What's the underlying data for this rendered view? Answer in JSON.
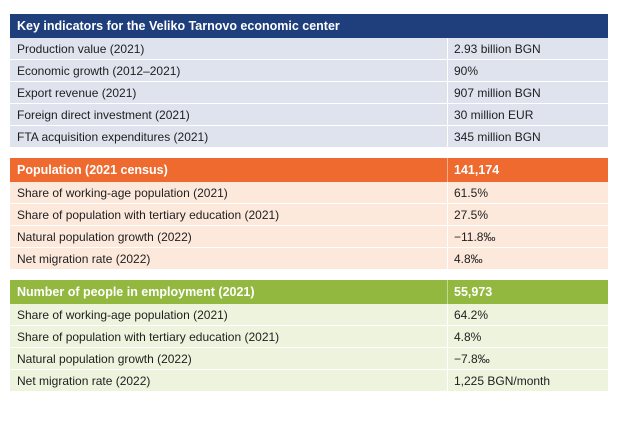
{
  "section1": {
    "title": "Key indicators for the Veliko Tarnovo economic center",
    "header_color": "#1f3e7c",
    "rows": [
      {
        "label": "Production value (2021)",
        "value": "2.93 billion BGN"
      },
      {
        "label": "Economic growth (2012–2021)",
        "value": "90%"
      },
      {
        "label": "Export revenue (2021)",
        "value": "907 million BGN"
      },
      {
        "label": "Foreign direct investment (2021)",
        "value": "30 million EUR"
      },
      {
        "label": "FTA acquisition expenditures (2021)",
        "value": "345 million BGN"
      }
    ]
  },
  "section2": {
    "title": "Population (2021 census)",
    "title_value": "141,174",
    "header_color": "#ee6a2f",
    "rows": [
      {
        "label": "Share of working-age population (2021)",
        "value": "61.5%"
      },
      {
        "label": "Share of population with tertiary education (2021)",
        "value": "27.5%"
      },
      {
        "label": "Natural population growth (2022)",
        "value": "−11.8‰"
      },
      {
        "label": "Net migration rate (2022)",
        "value": "4.8‰"
      }
    ]
  },
  "section3": {
    "title": "Number of people in employment (2021)",
    "title_value": "55,973",
    "header_color": "#92b83f",
    "rows": [
      {
        "label": "Share of working-age population (2021)",
        "value": "64.2%"
      },
      {
        "label": "Share of population with tertiary education (2021)",
        "value": "4.8%"
      },
      {
        "label": "Natural population growth (2022)",
        "value": "−7.8‰"
      },
      {
        "label": "Net migration rate (2022)",
        "value": "1,225 BGN/month"
      }
    ]
  }
}
